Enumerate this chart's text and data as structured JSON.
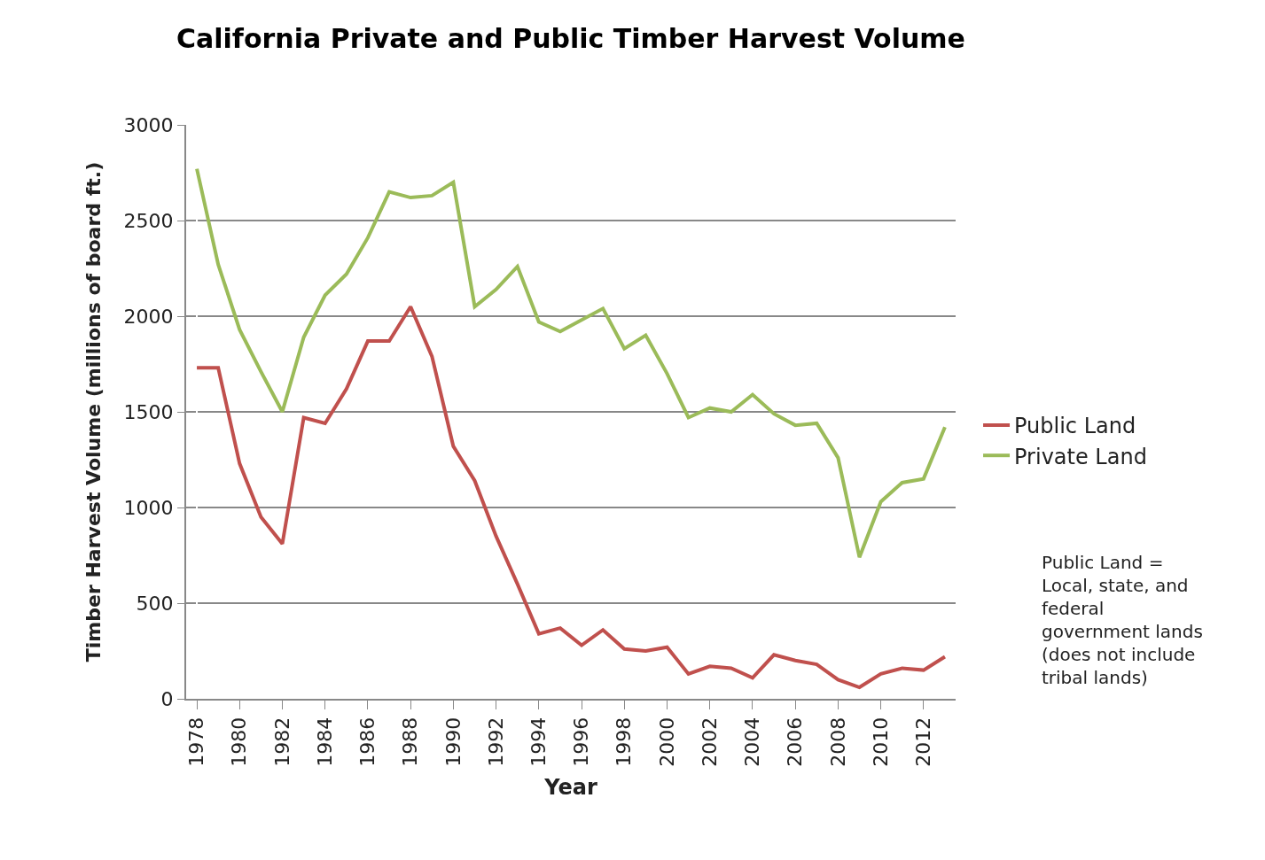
{
  "chart_data": {
    "type": "line",
    "title": "California Private and Public Timber Harvest Volume",
    "xlabel": "Year",
    "ylabel": "Timber Harvest Volume (millions of board ft.)",
    "categories": [
      "1978",
      null,
      "1980",
      null,
      "1982",
      null,
      "1984",
      null,
      "1986",
      null,
      "1988",
      null,
      "1990",
      null,
      "1992",
      null,
      "1994",
      null,
      "1996",
      null,
      "1998",
      null,
      "2000",
      null,
      "2002",
      null,
      "2004",
      null,
      "2006",
      null,
      "2008",
      null,
      "2010",
      null,
      "2012",
      null
    ],
    "series": [
      {
        "name": "Public Land",
        "color": "#c0504d",
        "values": [
          1730,
          1730,
          1230,
          950,
          810,
          1470,
          1440,
          1620,
          1870,
          1870,
          2050,
          1790,
          1320,
          1140,
          850,
          600,
          340,
          370,
          280,
          360,
          260,
          250,
          270,
          130,
          170,
          160,
          110,
          230,
          200,
          180,
          100,
          60,
          130,
          160,
          150,
          220
        ]
      },
      {
        "name": "Private Land",
        "color": "#9bbb59",
        "values": [
          2770,
          2270,
          1930,
          1710,
          1500,
          1890,
          2110,
          2220,
          2410,
          2650,
          2620,
          2630,
          2700,
          2050,
          2140,
          2260,
          1970,
          1920,
          1980,
          2040,
          1830,
          1900,
          1700,
          1470,
          1520,
          1500,
          1590,
          1490,
          1430,
          1440,
          1260,
          740,
          1030,
          1130,
          1150,
          1420
        ]
      }
    ],
    "ylim": [
      0,
      3000
    ],
    "yticks": [
      0,
      500,
      1000,
      1500,
      2000,
      2500,
      3000
    ],
    "grid": "y",
    "legend": "right",
    "marker": "none",
    "line_style": "solid",
    "annotations": [
      "Public Land =\nLocal, state, and\nfederal\ngovernment lands\n(does not include\ntribal lands)"
    ]
  }
}
